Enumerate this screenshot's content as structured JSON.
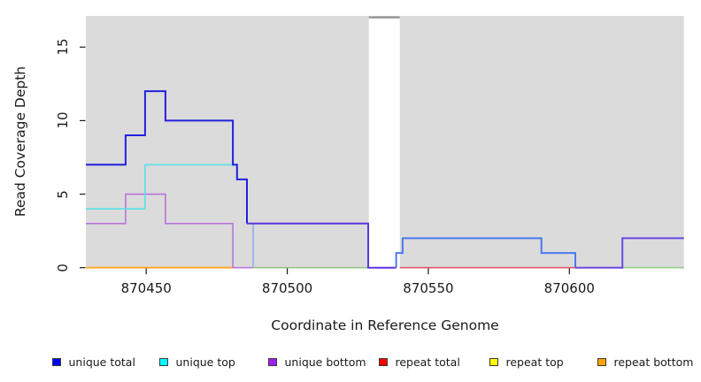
{
  "chart_data": {
    "type": "line",
    "subtype": "step-coverage-plot",
    "title": "",
    "xlabel": "Coordinate in Reference Genome",
    "ylabel": "Read Coverage Depth",
    "xlim": [
      870428.6,
      870640.6
    ],
    "ylim": [
      0,
      17.12
    ],
    "grid": false,
    "background_color": "#dbdbdb",
    "xticks": [
      {
        "v": 870450,
        "label": "870450"
      },
      {
        "v": 870500,
        "label": "870500"
      },
      {
        "v": 870550,
        "label": "870550"
      },
      {
        "v": 870600,
        "label": "870600"
      }
    ],
    "yticks": [
      {
        "v": 0,
        "label": "0"
      },
      {
        "v": 5,
        "label": "5"
      },
      {
        "v": 10,
        "label": "10"
      },
      {
        "v": 15,
        "label": "15"
      }
    ],
    "masked_region": {
      "x1": 870528.9,
      "x2": 870539.9,
      "cap_color": "#999999"
    },
    "series": [
      {
        "name": "unique total",
        "color": "#0000FF",
        "segments": [
          [
            870428,
            870443,
            7
          ],
          [
            870443,
            870450,
            9
          ],
          [
            870450,
            870457,
            12
          ],
          [
            870457,
            870481,
            10
          ],
          [
            870481,
            870482,
            7
          ],
          [
            870482,
            870486,
            6
          ],
          [
            870486,
            870529,
            3
          ],
          [
            870529,
            870539,
            0
          ],
          [
            870539,
            870541,
            1
          ],
          [
            870541,
            870590,
            2
          ],
          [
            870590,
            870602,
            1
          ],
          [
            870602,
            870619,
            0
          ],
          [
            870619,
            870641,
            2
          ]
        ]
      },
      {
        "name": "unique top",
        "color": "#00FFFF",
        "segments": [
          [
            870428,
            870450,
            4
          ],
          [
            870450,
            870481,
            7
          ],
          [
            870481,
            870482,
            7
          ],
          [
            870482,
            870486,
            6
          ],
          [
            870486,
            870488,
            3
          ],
          [
            870488,
            870539,
            0
          ],
          [
            870539,
            870541,
            1
          ],
          [
            870541,
            870590,
            2
          ],
          [
            870590,
            870602,
            1
          ],
          [
            870602,
            870641,
            0
          ]
        ]
      },
      {
        "name": "unique bottom",
        "color": "#A020F0",
        "segments": [
          [
            870428,
            870443,
            3
          ],
          [
            870443,
            870457,
            5
          ],
          [
            870457,
            870481,
            3
          ],
          [
            870481,
            870619,
            0
          ],
          [
            870619,
            870641,
            2
          ]
        ]
      },
      {
        "name": "repeat total",
        "color": "#FF0000",
        "segments": [
          [
            870428,
            870641,
            0
          ]
        ]
      },
      {
        "name": "repeat top",
        "color": "#FFFF00",
        "segments": [
          [
            870428,
            870641,
            0
          ]
        ]
      },
      {
        "name": "repeat bottom",
        "color": "#FFA500",
        "segments": [
          [
            870428,
            870641,
            0
          ]
        ]
      }
    ],
    "polylines": [
      {
        "id": "green-zero-left",
        "color": "#8fc487",
        "width": 1.6,
        "points": [
          [
            870487.9,
            0
          ],
          [
            870528.7,
            0
          ]
        ]
      },
      {
        "id": "green-zero-right",
        "color": "#93cb8a",
        "width": 1.6,
        "points": [
          [
            870618.8,
            0
          ],
          [
            870640.6,
            0
          ]
        ]
      },
      {
        "id": "orange-zero",
        "color": "#ffa51e",
        "width": 1.8,
        "points": [
          [
            870428.6,
            0
          ],
          [
            870480.7,
            0
          ]
        ]
      },
      {
        "id": "red-zero",
        "color": "#e25666",
        "width": 1.6,
        "points": [
          [
            870539.9,
            0
          ],
          [
            870602.1,
            0
          ]
        ]
      },
      {
        "id": "unique-bottom-visible",
        "color": "#bb73da",
        "width": 1.6,
        "points": [
          [
            870428.6,
            3
          ],
          [
            870442.7,
            3
          ],
          [
            870442.7,
            5
          ],
          [
            870456.8,
            5
          ],
          [
            870456.8,
            3
          ],
          [
            870480.7,
            3
          ],
          [
            870480.7,
            0
          ],
          [
            870487.9,
            0
          ]
        ]
      },
      {
        "id": "unique-top-visible",
        "color": "#58dfe8",
        "width": 1.6,
        "points": [
          [
            870428.6,
            4
          ],
          [
            870449.6,
            4
          ],
          [
            870449.6,
            7
          ],
          [
            870480.7,
            7
          ]
        ]
      },
      {
        "id": "unique-top-drop",
        "color": "#93aeef",
        "width": 1.6,
        "points": [
          [
            870487.9,
            3
          ],
          [
            870487.9,
            0
          ]
        ]
      },
      {
        "id": "unique-total-left",
        "color": "#2021dc",
        "width": 2,
        "points": [
          [
            870428.6,
            7
          ],
          [
            870442.7,
            7
          ],
          [
            870442.7,
            9
          ],
          [
            870449.6,
            9
          ],
          [
            870449.6,
            12
          ],
          [
            870456.8,
            12
          ],
          [
            870456.8,
            10
          ],
          [
            870480.7,
            10
          ],
          [
            870480.7,
            7
          ],
          [
            870482.2,
            7
          ],
          [
            870482.2,
            6
          ],
          [
            870485.7,
            6
          ],
          [
            870485.7,
            3
          ]
        ]
      },
      {
        "id": "unique-total-mid-violet",
        "color": "#5b36e2",
        "width": 2,
        "points": [
          [
            870485.7,
            3
          ],
          [
            870528.7,
            3
          ],
          [
            870528.7,
            0
          ],
          [
            870538.6,
            0
          ]
        ]
      },
      {
        "id": "unique-total-mid-cornflower",
        "color": "#4b79f0",
        "width": 2,
        "points": [
          [
            870538.6,
            0
          ],
          [
            870538.6,
            1
          ],
          [
            870540.9,
            1
          ],
          [
            870540.9,
            2
          ],
          [
            870590.1,
            2
          ],
          [
            870590.1,
            1
          ],
          [
            870602.1,
            1
          ],
          [
            870602.1,
            0
          ]
        ]
      },
      {
        "id": "unique-total-right-violet",
        "color": "#6a48e4",
        "width": 2,
        "points": [
          [
            870602.1,
            0
          ],
          [
            870618.8,
            0
          ],
          [
            870618.8,
            2
          ],
          [
            870640.6,
            2
          ]
        ]
      }
    ]
  },
  "legend": {
    "items": [
      {
        "label": "unique total",
        "color": "#0000FF"
      },
      {
        "label": "unique top",
        "color": "#00FFFF"
      },
      {
        "label": "unique bottom",
        "color": "#A020F0"
      },
      {
        "label": "repeat total",
        "color": "#FF0000"
      },
      {
        "label": "repeat top",
        "color": "#FFFF00"
      },
      {
        "label": "repeat bottom",
        "color": "#FFA500"
      }
    ]
  }
}
